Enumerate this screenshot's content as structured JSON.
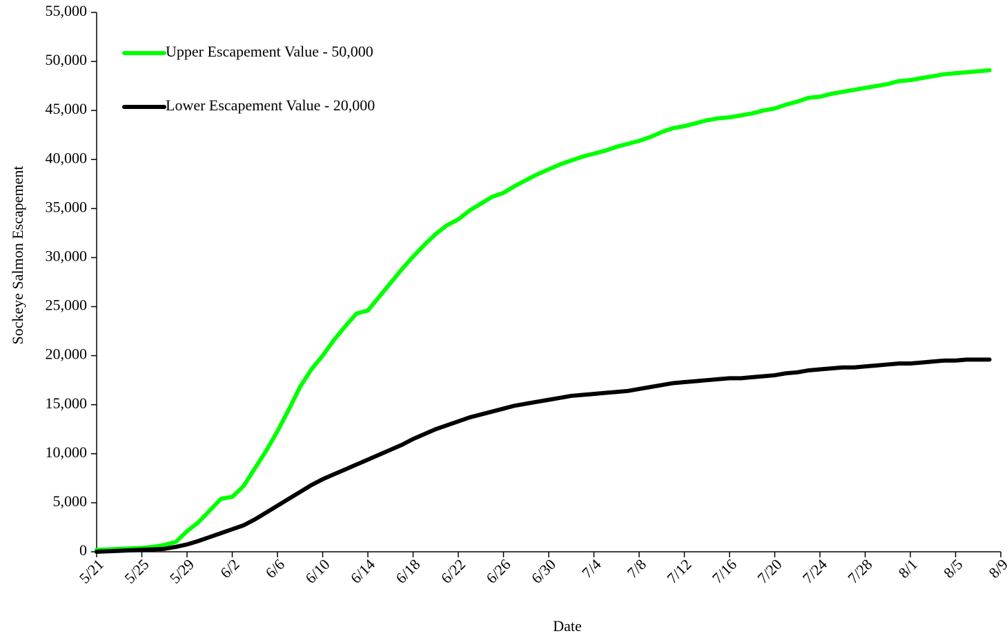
{
  "chart_data": {
    "type": "line",
    "x_label": "Date",
    "y_label": "Sockeye Salmon Escapement",
    "legend": "upper left",
    "categories": [
      "5/21",
      null,
      null,
      null,
      "5/25",
      null,
      null,
      null,
      "5/29",
      null,
      null,
      null,
      "6/2",
      null,
      null,
      null,
      "6/6",
      null,
      null,
      null,
      "6/10",
      null,
      null,
      null,
      "6/14",
      null,
      null,
      null,
      "6/18",
      null,
      null,
      null,
      "6/22",
      null,
      null,
      null,
      "6/26",
      null,
      null,
      null,
      "6/30",
      null,
      null,
      null,
      "7/4",
      null,
      null,
      null,
      "7/8",
      null,
      null,
      null,
      "7/12",
      null,
      null,
      null,
      "7/16",
      null,
      null,
      null,
      "7/20",
      null,
      null,
      null,
      "7/24",
      null,
      null,
      null,
      "7/28",
      null,
      null,
      null,
      "8/1",
      null,
      null,
      null,
      "8/5",
      null,
      null,
      null,
      "8/9"
    ],
    "series": [
      {
        "name": "Upper Escapement Value - 50,000",
        "color": "#00ff00",
        "values": [
          200,
          250,
          300,
          350,
          400,
          500,
          700,
          1000,
          2100,
          3000,
          4200,
          5400,
          5600,
          6700,
          8500,
          10300,
          12300,
          14500,
          16800,
          18600,
          20000,
          21600,
          23000,
          24300,
          24600,
          26000,
          27400,
          28800,
          30100,
          31300,
          32400,
          33300,
          33900,
          34800,
          35500,
          36200,
          36600,
          37300,
          37900,
          38500,
          39000,
          39500,
          39900,
          40300,
          40600,
          40900,
          41300,
          41600,
          41900,
          42300,
          42800,
          43200,
          43400,
          43700,
          44000,
          44200,
          44300,
          44500,
          44700,
          45000,
          45200,
          45600,
          45900,
          46300,
          46400,
          46700,
          46900,
          47100,
          47300,
          47500,
          47700,
          48000,
          48100,
          48300,
          48500,
          48700,
          48800,
          48900,
          49000,
          49100,
          null
        ]
      },
      {
        "name": "Lower Escapement Value - 20,000",
        "color": "#000000",
        "values": [
          0,
          50,
          100,
          150,
          200,
          250,
          300,
          500,
          750,
          1100,
          1500,
          1900,
          2300,
          2700,
          3300,
          4000,
          4700,
          5400,
          6100,
          6800,
          7400,
          7900,
          8400,
          8900,
          9400,
          9900,
          10400,
          10900,
          11500,
          12000,
          12500,
          12900,
          13300,
          13700,
          14000,
          14300,
          14600,
          14900,
          15100,
          15300,
          15500,
          15700,
          15900,
          16000,
          16100,
          16200,
          16300,
          16400,
          16600,
          16800,
          17000,
          17200,
          17300,
          17400,
          17500,
          17600,
          17700,
          17700,
          17800,
          17900,
          18000,
          18200,
          18300,
          18500,
          18600,
          18700,
          18800,
          18800,
          18900,
          19000,
          19100,
          19200,
          19200,
          19300,
          19400,
          19500,
          19500,
          19600,
          19600,
          19600,
          null
        ]
      }
    ],
    "ylim": [
      0,
      55000
    ],
    "yticks": [
      0,
      {
        "value": 5000,
        "label": "5,000"
      },
      {
        "value": 10000,
        "label": "10,000"
      },
      {
        "value": 15000,
        "label": "15,000"
      },
      {
        "value": 20000,
        "label": "20,000"
      },
      {
        "value": 25000,
        "label": "25,000"
      },
      {
        "value": 30000,
        "label": "30,000"
      },
      {
        "value": 35000,
        "label": "35,000"
      },
      {
        "value": 40000,
        "label": "40,000"
      },
      {
        "value": 45000,
        "label": "45,000"
      },
      {
        "value": 50000,
        "label": "50,000"
      },
      {
        "value": 55000,
        "label": "55,000"
      }
    ]
  }
}
